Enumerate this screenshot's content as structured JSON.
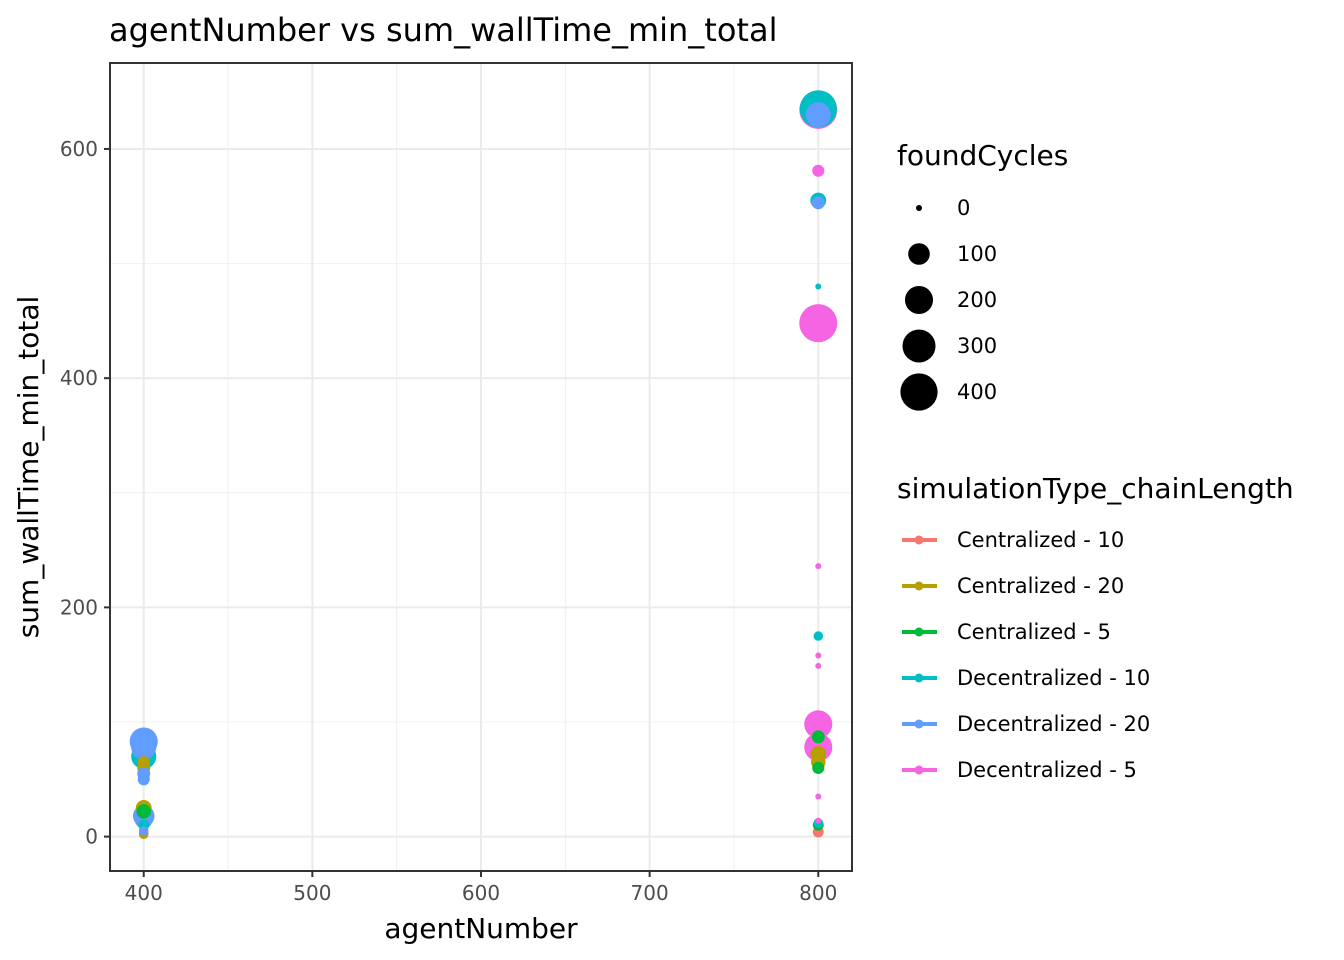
{
  "chart_data": {
    "type": "scatter",
    "title": "agentNumber  vs  sum_wallTime_min_total",
    "xlabel": "agentNumber",
    "ylabel": "sum_wallTime_min_total",
    "xlim": [
      380,
      820
    ],
    "ylim": [
      -30,
      675
    ],
    "x_ticks": [
      400,
      500,
      600,
      700,
      800
    ],
    "y_ticks": [
      0,
      200,
      400,
      600
    ],
    "grid": true,
    "legend_position": "right",
    "size_legend": {
      "title": "foundCycles",
      "values": [
        0,
        100,
        200,
        300,
        400
      ]
    },
    "color_legend": {
      "title": "simulationType_chainLength",
      "entries": [
        {
          "label": "Centralized - 10",
          "color": "#F8766D"
        },
        {
          "label": "Centralized - 20",
          "color": "#B79F00"
        },
        {
          "label": "Centralized - 5",
          "color": "#00BA38"
        },
        {
          "label": "Decentralized - 10",
          "color": "#00BFC4"
        },
        {
          "label": "Decentralized - 20",
          "color": "#619CFF"
        },
        {
          "label": "Decentralized - 5",
          "color": "#F564E3"
        }
      ]
    },
    "series": [
      {
        "name": "Centralized - 10",
        "color": "#F8766D",
        "points": [
          {
            "x": 800,
            "y": 2,
            "size": 0
          },
          {
            "x": 800,
            "y": 4,
            "size": 10
          },
          {
            "x": 400,
            "y": 3,
            "size": 5
          }
        ]
      },
      {
        "name": "Centralized - 20",
        "color": "#B79F00",
        "points": [
          {
            "x": 400,
            "y": 2,
            "size": 5
          },
          {
            "x": 400,
            "y": 25,
            "size": 40
          },
          {
            "x": 400,
            "y": 60,
            "size": 20
          },
          {
            "x": 400,
            "y": 65,
            "size": 15
          },
          {
            "x": 800,
            "y": 65,
            "size": 30
          },
          {
            "x": 800,
            "y": 72,
            "size": 40
          },
          {
            "x": 800,
            "y": 60,
            "size": 15
          }
        ]
      },
      {
        "name": "Centralized - 5",
        "color": "#00BA38",
        "points": [
          {
            "x": 400,
            "y": 22,
            "size": 30
          },
          {
            "x": 800,
            "y": 87,
            "size": 20
          },
          {
            "x": 800,
            "y": 60,
            "size": 15
          },
          {
            "x": 800,
            "y": 10,
            "size": 10
          }
        ]
      },
      {
        "name": "Decentralized - 10",
        "color": "#00BFC4",
        "points": [
          {
            "x": 800,
            "y": 635,
            "size": 400
          },
          {
            "x": 800,
            "y": 555,
            "size": 40
          },
          {
            "x": 800,
            "y": 480,
            "size": 0
          },
          {
            "x": 800,
            "y": 175,
            "size": 5
          },
          {
            "x": 800,
            "y": 12,
            "size": 5
          },
          {
            "x": 400,
            "y": 70,
            "size": 150
          },
          {
            "x": 400,
            "y": 10,
            "size": 10
          }
        ]
      },
      {
        "name": "Decentralized - 20",
        "color": "#619CFF",
        "points": [
          {
            "x": 800,
            "y": 630,
            "size": 150
          },
          {
            "x": 800,
            "y": 553,
            "size": 20
          },
          {
            "x": 400,
            "y": 83,
            "size": 200
          },
          {
            "x": 400,
            "y": 78,
            "size": 150
          },
          {
            "x": 400,
            "y": 55,
            "size": 20
          },
          {
            "x": 400,
            "y": 50,
            "size": 15
          },
          {
            "x": 400,
            "y": 18,
            "size": 100
          },
          {
            "x": 400,
            "y": 15,
            "size": 60
          },
          {
            "x": 400,
            "y": 5,
            "size": 5
          }
        ]
      },
      {
        "name": "Decentralized - 5",
        "color": "#F564E3",
        "points": [
          {
            "x": 800,
            "y": 634,
            "size": 420
          },
          {
            "x": 800,
            "y": 581,
            "size": 15
          },
          {
            "x": 800,
            "y": 448,
            "size": 420
          },
          {
            "x": 800,
            "y": 236,
            "size": 0
          },
          {
            "x": 800,
            "y": 158,
            "size": 0
          },
          {
            "x": 800,
            "y": 149,
            "size": 0
          },
          {
            "x": 800,
            "y": 98,
            "size": 200
          },
          {
            "x": 800,
            "y": 78,
            "size": 200
          },
          {
            "x": 800,
            "y": 35,
            "size": 0
          },
          {
            "x": 800,
            "y": 14,
            "size": 0
          }
        ]
      }
    ]
  }
}
